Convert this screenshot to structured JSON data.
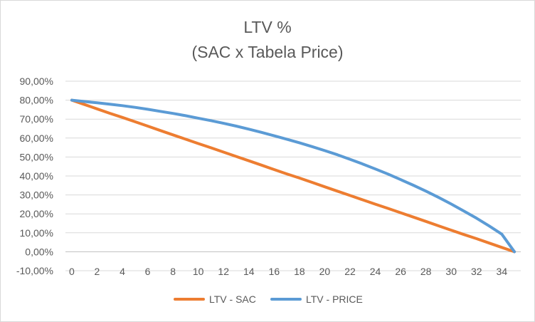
{
  "chart_data": {
    "type": "line",
    "title": "LTV %",
    "subtitle": "(SAC x Tabela Price)",
    "xlabel": "",
    "ylabel": "",
    "x": [
      0,
      1,
      2,
      3,
      4,
      5,
      6,
      7,
      8,
      9,
      10,
      11,
      12,
      13,
      14,
      15,
      16,
      17,
      18,
      19,
      20,
      21,
      22,
      23,
      24,
      25,
      26,
      27,
      28,
      29,
      30,
      31,
      32,
      33,
      34,
      35
    ],
    "x_ticks": [
      "0",
      "2",
      "4",
      "6",
      "8",
      "10",
      "12",
      "14",
      "16",
      "18",
      "20",
      "22",
      "24",
      "26",
      "28",
      "30",
      "32",
      "34"
    ],
    "x_tick_values": [
      0,
      2,
      4,
      6,
      8,
      10,
      12,
      14,
      16,
      18,
      20,
      22,
      24,
      26,
      28,
      30,
      32,
      34
    ],
    "xlim": [
      -0.5,
      35.5
    ],
    "y_ticks": [
      "-10,00%",
      "0,00%",
      "10,00%",
      "20,00%",
      "30,00%",
      "40,00%",
      "50,00%",
      "60,00%",
      "70,00%",
      "80,00%",
      "90,00%"
    ],
    "y_tick_values": [
      -10,
      0,
      10,
      20,
      30,
      40,
      50,
      60,
      70,
      80,
      90
    ],
    "ylim": [
      -10,
      90
    ],
    "grid": true,
    "legend_position": "bottom",
    "series": [
      {
        "name": "LTV - SAC",
        "color": "#ed7d31",
        "values": [
          80,
          77.7,
          75.4,
          73.1,
          70.9,
          68.6,
          66.3,
          64,
          61.7,
          59.4,
          57.1,
          54.9,
          52.6,
          50.3,
          48,
          45.7,
          43.4,
          41.1,
          38.9,
          36.6,
          34.3,
          32,
          29.7,
          27.4,
          25.1,
          22.9,
          20.6,
          18.3,
          16,
          13.7,
          11.4,
          9.1,
          6.9,
          4.6,
          2.3,
          0
        ]
      },
      {
        "name": "LTV - PRICE",
        "color": "#5b9bd5",
        "values": [
          80,
          79.3,
          78.6,
          77.9,
          77.1,
          76.2,
          75.2,
          74.1,
          73,
          71.8,
          70.5,
          69.2,
          67.8,
          66.3,
          64.7,
          63,
          61.2,
          59.4,
          57.5,
          55.5,
          53.4,
          51.2,
          48.8,
          46.3,
          43.7,
          41,
          38.1,
          35.1,
          32,
          28.7,
          25.2,
          21.5,
          17.7,
          13.6,
          9.3,
          0
        ]
      }
    ]
  }
}
